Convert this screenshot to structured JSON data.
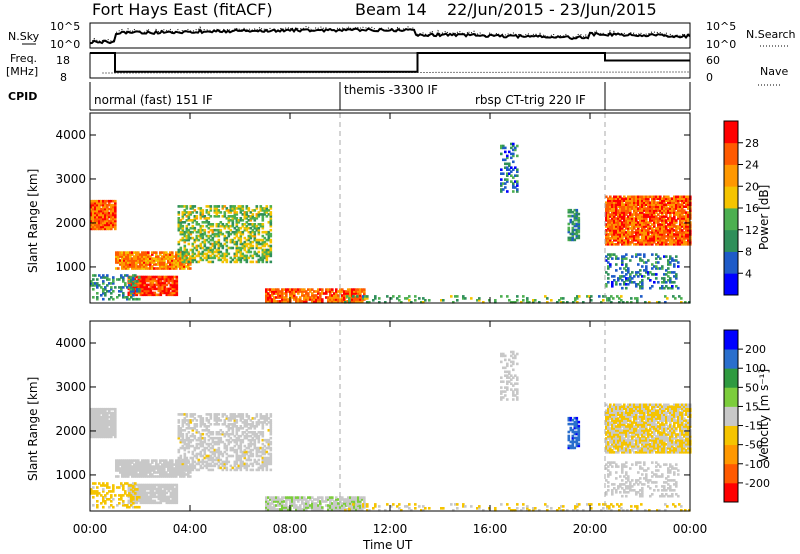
{
  "header": {
    "title": "Fort Hays East (fitACF)",
    "beam": "Beam 14",
    "date_range": "22/Jun/2015 - 23/Jun/2015"
  },
  "top_panels": {
    "nsky_label": "N.Sky",
    "nsky_ticks": [
      "10^5",
      "10^0"
    ],
    "nsearch_label": "N.Search",
    "nsearch_ticks": [
      "10^5",
      "10^0"
    ],
    "freq_label": "Freq.",
    "freq_unit": "[MHz]",
    "freq_ticks": [
      "18",
      "8"
    ],
    "nave_label": "Nave",
    "nave_ticks": [
      "60",
      "0"
    ],
    "cpid_label": "CPID"
  },
  "cpid_segments": [
    {
      "label": "normal (fast) 151 IF",
      "start_hour": 0,
      "end_hour": 10
    },
    {
      "label": "themis -3300 IF",
      "start_hour": 10,
      "end_hour": 20.6
    },
    {
      "label": "rbsp CT-trig 220 IF",
      "start_hour": 20.6,
      "end_hour": 24
    }
  ],
  "power_panel": {
    "ylabel": "Slant Range [km]",
    "yticks": [
      "4000",
      "3000",
      "2000",
      "1000"
    ],
    "colorbar_label": "Power [dB]",
    "colorbar_ticks": [
      "28",
      "24",
      "20",
      "16",
      "12",
      "8",
      "4"
    ]
  },
  "velocity_panel": {
    "ylabel": "Slant Range [km]",
    "yticks": [
      "4000",
      "3000",
      "2000",
      "1000"
    ],
    "colorbar_label": "Velocity [m s⁻¹]",
    "colorbar_ticks": [
      "200",
      "100",
      "50",
      "15",
      "-15",
      "-50",
      "-100",
      "-200"
    ]
  },
  "x_axis": {
    "label": "Time UT",
    "ticks": [
      "00:00",
      "04:00",
      "08:00",
      "12:00",
      "16:00",
      "20:00",
      "00:00"
    ]
  },
  "chart_data": {
    "type": "heatmap",
    "title": "Fort Hays East (fitACF)",
    "subtitle": "Beam 14 22/Jun/2015 - 23/Jun/2015",
    "xlabel": "Time UT",
    "ylabel": "Slant Range [km]",
    "xlim": [
      0,
      24
    ],
    "ylim": [
      180,
      4500
    ],
    "power_scale": {
      "label": "Power [dB]",
      "range": [
        0,
        30
      ],
      "colors": [
        "#0000ff",
        "#1e5bc8",
        "#2f8f5a",
        "#4caf50",
        "#f5c400",
        "#ff9800",
        "#ff5a00",
        "#ff0000"
      ]
    },
    "velocity_scale": {
      "label": "Velocity [m s⁻¹]",
      "range": [
        -250,
        250
      ],
      "colors": [
        "#ff0000",
        "#ff5a00",
        "#ff9800",
        "#f5c400",
        "#c8c8c8",
        "#7ccd3c",
        "#2f9a40",
        "#2a6fcd",
        "#0000ff"
      ]
    },
    "cpid_change_hours": [
      10,
      20.6
    ],
    "freq_mhz": [
      {
        "start_hour": 0,
        "end_hour": 1,
        "value": 18
      },
      {
        "start_hour": 1,
        "end_hour": 13.1,
        "value": 10.5
      },
      {
        "start_hour": 13.1,
        "end_hour": 20.6,
        "value": 18
      },
      {
        "start_hour": 20.6,
        "end_hour": 24,
        "value": 15
      }
    ],
    "echo_regions": [
      {
        "name": "A",
        "t0": 0.0,
        "t1": 1.0,
        "r0": 1850,
        "r1": 2500,
        "power": 24,
        "velocity": 0,
        "density": 0.95
      },
      {
        "name": "B",
        "t0": 1.0,
        "t1": 4.0,
        "r0": 950,
        "r1": 1350,
        "power": 22,
        "velocity": -5,
        "density": 0.9
      },
      {
        "name": "C",
        "t0": 1.5,
        "t1": 3.5,
        "r0": 350,
        "r1": 800,
        "power": 26,
        "velocity": 0,
        "density": 0.85
      },
      {
        "name": "D",
        "t0": 3.5,
        "t1": 7.2,
        "r0": 1100,
        "r1": 2400,
        "power": 14,
        "velocity": -10,
        "density": 0.55
      },
      {
        "name": "E",
        "t0": 7.0,
        "t1": 11.0,
        "r0": 200,
        "r1": 500,
        "power": 24,
        "velocity": 20,
        "density": 0.8
      },
      {
        "name": "F",
        "t0": 0.0,
        "t1": 2.0,
        "r0": 250,
        "r1": 800,
        "power": 10,
        "velocity": -40,
        "density": 0.35
      },
      {
        "name": "G",
        "t0": 16.4,
        "t1": 17.1,
        "r0": 2700,
        "r1": 3800,
        "power": 8,
        "velocity": 5,
        "density": 0.35
      },
      {
        "name": "H",
        "t0": 19.1,
        "t1": 19.5,
        "r0": 1600,
        "r1": 2300,
        "power": 10,
        "velocity": 180,
        "density": 0.6
      },
      {
        "name": "I",
        "t0": 20.6,
        "t1": 24.0,
        "r0": 1500,
        "r1": 2600,
        "power": 24,
        "velocity": -30,
        "density": 0.9
      },
      {
        "name": "J",
        "t0": 20.6,
        "t1": 23.5,
        "r0": 500,
        "r1": 1300,
        "power": 8,
        "velocity": 0,
        "density": 0.3
      },
      {
        "name": "K",
        "t0": 10.0,
        "t1": 24.0,
        "r0": 180,
        "r1": 320,
        "power": 12,
        "velocity": -30,
        "density": 0.2
      }
    ]
  }
}
